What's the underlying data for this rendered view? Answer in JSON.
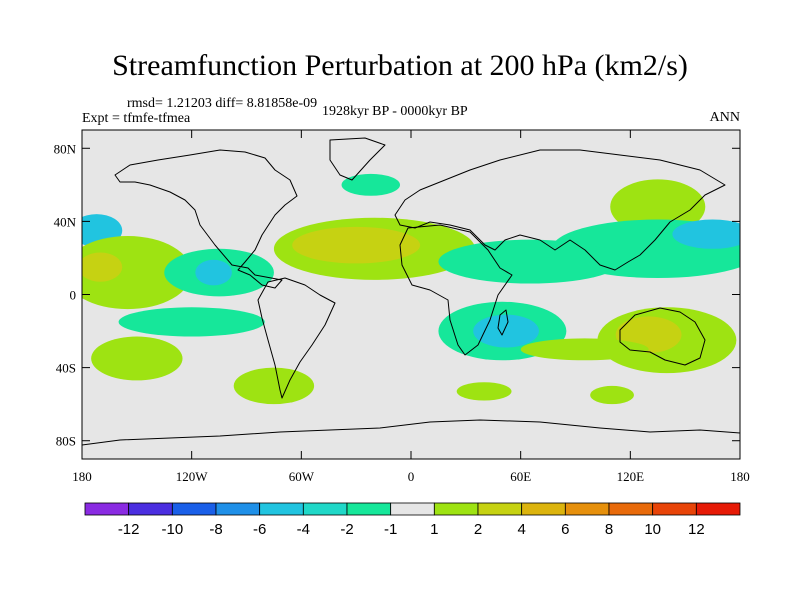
{
  "chart_data": {
    "type": "heatmap",
    "title": "Streamfunction Perturbation at 200 hPa (km2/s)",
    "stats_text": "rmsd= 1.21203 diff= 8.81858e-09",
    "expt_text": "Expt = tfmfe-tfmea",
    "period_text": "1928kyr BP - 0000kyr BP",
    "season_text": "ANN",
    "xlim": [
      -180,
      180
    ],
    "ylim": [
      -90,
      90
    ],
    "x_ticks": [
      {
        "value": -180,
        "label": "180"
      },
      {
        "value": -120,
        "label": "120W"
      },
      {
        "value": -60,
        "label": "60W"
      },
      {
        "value": 0,
        "label": "0"
      },
      {
        "value": 60,
        "label": "60E"
      },
      {
        "value": 120,
        "label": "120E"
      },
      {
        "value": 180,
        "label": "180"
      }
    ],
    "y_ticks": [
      {
        "value": 80,
        "label": "80N"
      },
      {
        "value": 40,
        "label": "40N"
      },
      {
        "value": 0,
        "label": "0"
      },
      {
        "value": -40,
        "label": "40S"
      },
      {
        "value": -80,
        "label": "80S"
      }
    ],
    "colorbar": {
      "colors": [
        "#8a2be2",
        "#4b2ee0",
        "#1a5fe8",
        "#1f90e8",
        "#21c4e0",
        "#20d8c8",
        "#16e79a",
        "#e6e6e6",
        "#9ee312",
        "#c6d212",
        "#dcb40e",
        "#e6900c",
        "#e86a0a",
        "#e84408",
        "#e61a06"
      ],
      "labels": [
        "-12",
        "-10",
        "-8",
        "-6",
        "-4",
        "-2",
        "-1",
        "1",
        "2",
        "4",
        "6",
        "8",
        "10",
        "12"
      ]
    },
    "regions": [
      {
        "name": "n-pacific-positive",
        "level": 2,
        "color": "#9ee312",
        "lon": 135,
        "lat": 48,
        "rlon": 26,
        "rlat": 15
      },
      {
        "name": "n-pacific-negative-band",
        "level": -2,
        "color": "#16e79a",
        "lon": 135,
        "lat": 25,
        "rlon": 58,
        "rlat": 16
      },
      {
        "name": "w-pacific-negative-core",
        "level": -4,
        "color": "#21c4e0",
        "lon": 165,
        "lat": 33,
        "rlon": 22,
        "rlat": 8
      },
      {
        "name": "central-pacific-negative",
        "level": -4,
        "color": "#21c4e0",
        "lon": -172,
        "lat": 35,
        "rlon": 14,
        "rlat": 9
      },
      {
        "name": "pacific-positive-tongue",
        "level": 2,
        "color": "#9ee312",
        "lon": -155,
        "lat": 12,
        "rlon": 35,
        "rlat": 20
      },
      {
        "name": "pacific-positive-core",
        "level": 4,
        "color": "#c6d212",
        "lon": -170,
        "lat": 15,
        "rlon": 12,
        "rlat": 8
      },
      {
        "name": "e-pacific-negative",
        "level": -2,
        "color": "#16e79a",
        "lon": -105,
        "lat": 12,
        "rlon": 30,
        "rlat": 13
      },
      {
        "name": "e-pacific-negative-core",
        "level": -4,
        "color": "#21c4e0",
        "lon": -108,
        "lat": 12,
        "rlon": 10,
        "rlat": 7
      },
      {
        "name": "n-atlantic-positive",
        "level": 2,
        "color": "#9ee312",
        "lon": -20,
        "lat": 25,
        "rlon": 55,
        "rlat": 17
      },
      {
        "name": "n-atlantic-positive-core",
        "level": 4,
        "color": "#c6d212",
        "lon": -30,
        "lat": 27,
        "rlon": 35,
        "rlat": 10
      },
      {
        "name": "north-sea-negative",
        "level": -2,
        "color": "#16e79a",
        "lon": -22,
        "lat": 60,
        "rlon": 16,
        "rlat": 6
      },
      {
        "name": "tropical-negative-band",
        "level": -2,
        "color": "#16e79a",
        "lon": 65,
        "lat": 18,
        "rlon": 50,
        "rlat": 12
      },
      {
        "name": "s-pacific-negative",
        "level": -2,
        "color": "#16e79a",
        "lon": -120,
        "lat": -15,
        "rlon": 40,
        "rlat": 8
      },
      {
        "name": "s-pacific-positive",
        "level": 2,
        "color": "#9ee312",
        "lon": -150,
        "lat": -35,
        "rlon": 25,
        "rlat": 12
      },
      {
        "name": "s-atlantic-positive",
        "level": 2,
        "color": "#9ee312",
        "lon": -75,
        "lat": -50,
        "rlon": 22,
        "rlat": 10
      },
      {
        "name": "s-indian-negative",
        "level": -2,
        "color": "#16e79a",
        "lon": 50,
        "lat": -20,
        "rlon": 35,
        "rlat": 16
      },
      {
        "name": "s-indian-negative-core",
        "level": -4,
        "color": "#21c4e0",
        "lon": 52,
        "lat": -20,
        "rlon": 18,
        "rlat": 9
      },
      {
        "name": "australia-positive",
        "level": 2,
        "color": "#9ee312",
        "lon": 140,
        "lat": -25,
        "rlon": 38,
        "rlat": 18
      },
      {
        "name": "australia-positive-core",
        "level": 4,
        "color": "#c6d212",
        "lon": 130,
        "lat": -22,
        "rlon": 18,
        "rlat": 10
      },
      {
        "name": "indian-positive-streak",
        "level": 2,
        "color": "#9ee312",
        "lon": 95,
        "lat": -30,
        "rlon": 35,
        "rlat": 6
      },
      {
        "name": "s-indian-positive-small",
        "level": 2,
        "color": "#9ee312",
        "lon": 40,
        "lat": -53,
        "rlon": 15,
        "rlat": 5
      },
      {
        "name": "s-ocean-positive-small",
        "level": 2,
        "color": "#9ee312",
        "lon": 110,
        "lat": -55,
        "rlon": 12,
        "rlat": 5
      }
    ]
  }
}
